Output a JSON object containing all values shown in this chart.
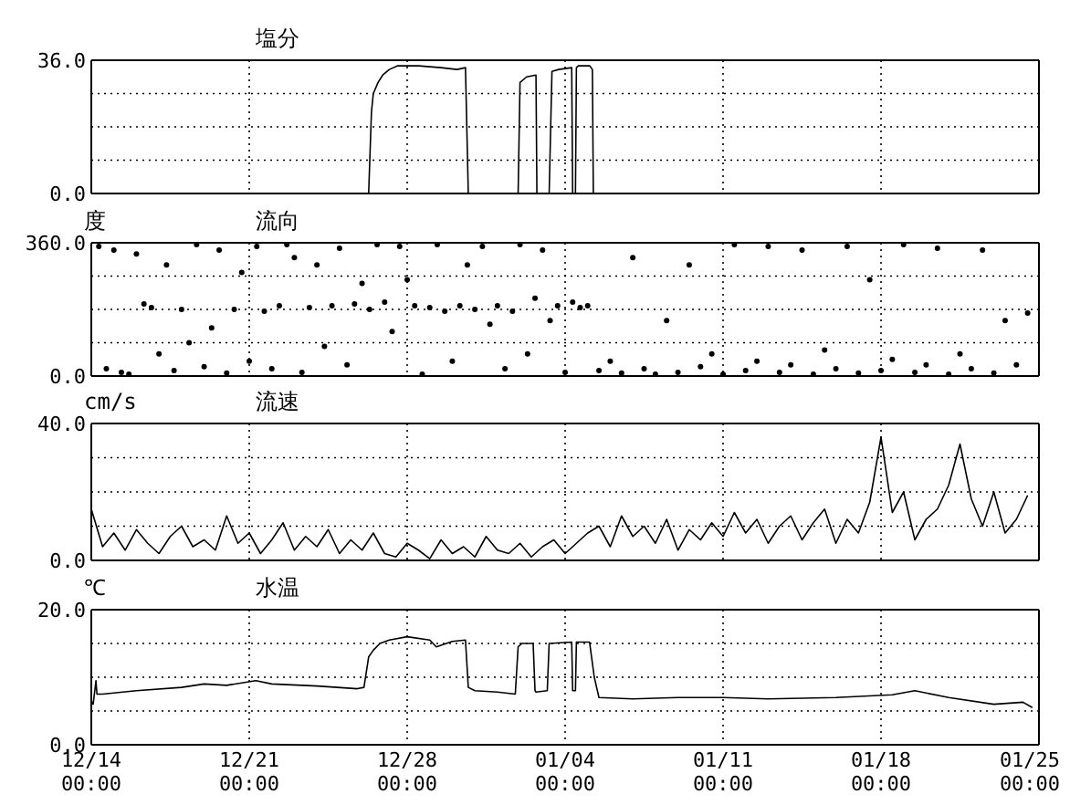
{
  "chart_data": [
    {
      "type": "line",
      "title": "塩分",
      "color": "#000000",
      "grid": true,
      "tick_labels": "y",
      "xlim": [
        "2000-12-14",
        "2001-01-25"
      ],
      "ylim": [
        0,
        36
      ],
      "xticks": [
        {
          "value": "2000-12-14",
          "label": null
        },
        {
          "value": "2000-12-21",
          "label": null
        },
        {
          "value": "2000-12-28",
          "label": null
        },
        {
          "value": "2001-01-04",
          "label": null
        },
        {
          "value": "2001-01-11",
          "label": null
        },
        {
          "value": "2001-01-18",
          "label": null
        },
        {
          "value": "2001-01-25",
          "label": null
        }
      ],
      "yticks": [
        {
          "value": 0,
          "label": "0.0"
        },
        {
          "value": 9,
          "label": null
        },
        {
          "value": 18,
          "label": null
        },
        {
          "value": 27,
          "label": null
        },
        {
          "value": 36,
          "label": "36.0"
        }
      ],
      "x": [
        "2000-12-14T00:00",
        "2000-12-26T07:00",
        "2000-12-26T10:00",
        "2000-12-26T12:00",
        "2000-12-26T17:00",
        "2000-12-26T22:00",
        "2000-12-27T05:00",
        "2000-12-27T14:00",
        "2000-12-28T12:00",
        "2000-12-29T12:00",
        "2000-12-30T05:00",
        "2000-12-30T14:00",
        "2000-12-30T17:00",
        "2001-01-01T22:00",
        "2001-01-02T00:00",
        "2001-01-02T07:00",
        "2001-01-02T17:00",
        "2001-01-02T18:00",
        "2001-01-03T07:00",
        "2001-01-03T10:00",
        "2001-01-03T17:00",
        "2001-01-04T07:00",
        "2001-01-04T08:00",
        "2001-01-04T11:00",
        "2001-01-04T12:00",
        "2001-01-04T14:00",
        "2001-01-05T02:00",
        "2001-01-05T05:00",
        "2001-01-05T06:00",
        "2001-01-25T00:00"
      ],
      "values": [
        0,
        0,
        22,
        27,
        30,
        32,
        33.5,
        34.5,
        34.5,
        34,
        33.5,
        34,
        0,
        0,
        30,
        31.5,
        32,
        0,
        0,
        33,
        33.5,
        34,
        0,
        0,
        34,
        34.5,
        34.5,
        33.5,
        0,
        0
      ]
    },
    {
      "type": "scatter",
      "title": "流向",
      "ylabel": "度",
      "color": "#000000",
      "marker": "circle",
      "grid": true,
      "tick_labels": "y",
      "xlim": [
        "2000-12-14",
        "2001-01-25"
      ],
      "ylim": [
        0,
        360
      ],
      "xticks": [
        {
          "value": "2000-12-14",
          "label": null
        },
        {
          "value": "2000-12-21",
          "label": null
        },
        {
          "value": "2000-12-28",
          "label": null
        },
        {
          "value": "2001-01-04",
          "label": null
        },
        {
          "value": "2001-01-11",
          "label": null
        },
        {
          "value": "2001-01-18",
          "label": null
        },
        {
          "value": "2001-01-25",
          "label": null
        }
      ],
      "yticks": [
        {
          "value": 0,
          "label": "0.0"
        },
        {
          "value": 90,
          "label": null
        },
        {
          "value": 180,
          "label": null
        },
        {
          "value": 270,
          "label": null
        },
        {
          "value": 360,
          "label": "360.0"
        }
      ],
      "x": [
        "2000-12-14T08:00",
        "2000-12-14T16:00",
        "2000-12-15T00:00",
        "2000-12-15T08:00",
        "2000-12-15T16:00",
        "2000-12-16T00:00",
        "2000-12-16T08:00",
        "2000-12-16T16:00",
        "2000-12-17T00:00",
        "2000-12-17T08:00",
        "2000-12-17T16:00",
        "2000-12-18T00:00",
        "2000-12-18T08:00",
        "2000-12-18T16:00",
        "2000-12-19T00:00",
        "2000-12-19T08:00",
        "2000-12-19T16:00",
        "2000-12-20T00:00",
        "2000-12-20T08:00",
        "2000-12-20T16:00",
        "2000-12-21T00:00",
        "2000-12-21T08:00",
        "2000-12-21T16:00",
        "2000-12-22T00:00",
        "2000-12-22T08:00",
        "2000-12-22T16:00",
        "2000-12-23T00:00",
        "2000-12-23T08:00",
        "2000-12-23T16:00",
        "2000-12-24T00:00",
        "2000-12-24T08:00",
        "2000-12-24T16:00",
        "2000-12-25T00:00",
        "2000-12-25T08:00",
        "2000-12-25T16:00",
        "2000-12-26T00:00",
        "2000-12-26T08:00",
        "2000-12-26T16:00",
        "2000-12-27T00:00",
        "2000-12-27T08:00",
        "2000-12-27T16:00",
        "2000-12-28T00:00",
        "2000-12-28T08:00",
        "2000-12-28T16:00",
        "2000-12-29T00:00",
        "2000-12-29T08:00",
        "2000-12-29T16:00",
        "2000-12-30T00:00",
        "2000-12-30T08:00",
        "2000-12-30T16:00",
        "2000-12-31T00:00",
        "2000-12-31T08:00",
        "2000-12-31T16:00",
        "2001-01-01T00:00",
        "2001-01-01T08:00",
        "2001-01-01T16:00",
        "2001-01-02T00:00",
        "2001-01-02T08:00",
        "2001-01-02T16:00",
        "2001-01-03T00:00",
        "2001-01-03T08:00",
        "2001-01-03T16:00",
        "2001-01-04T00:00",
        "2001-01-04T08:00",
        "2001-01-04T16:00",
        "2001-01-05T00:00",
        "2001-01-05T12:00",
        "2001-01-06T00:00",
        "2001-01-06T12:00",
        "2001-01-07T00:00",
        "2001-01-07T12:00",
        "2001-01-08T00:00",
        "2001-01-08T12:00",
        "2001-01-09T00:00",
        "2001-01-09T12:00",
        "2001-01-10T00:00",
        "2001-01-10T12:00",
        "2001-01-11T00:00",
        "2001-01-11T12:00",
        "2001-01-12T00:00",
        "2001-01-12T12:00",
        "2001-01-13T00:00",
        "2001-01-13T12:00",
        "2001-01-14T00:00",
        "2001-01-14T12:00",
        "2001-01-15T00:00",
        "2001-01-15T12:00",
        "2001-01-16T00:00",
        "2001-01-16T12:00",
        "2001-01-17T00:00",
        "2001-01-17T12:00",
        "2001-01-18T00:00",
        "2001-01-18T12:00",
        "2001-01-19T00:00",
        "2001-01-19T12:00",
        "2001-01-20T00:00",
        "2001-01-20T12:00",
        "2001-01-21T00:00",
        "2001-01-21T12:00",
        "2001-01-22T00:00",
        "2001-01-22T12:00",
        "2001-01-23T00:00",
        "2001-01-23T12:00",
        "2001-01-24T00:00",
        "2001-01-24T12:00"
      ],
      "values": [
        350,
        20,
        340,
        10,
        5,
        330,
        195,
        185,
        60,
        300,
        15,
        180,
        90,
        355,
        25,
        130,
        340,
        8,
        180,
        280,
        40,
        350,
        175,
        20,
        190,
        355,
        320,
        10,
        185,
        300,
        80,
        190,
        345,
        30,
        195,
        250,
        180,
        355,
        200,
        120,
        350,
        260,
        190,
        5,
        185,
        355,
        175,
        40,
        190,
        300,
        180,
        350,
        140,
        190,
        20,
        175,
        355,
        60,
        210,
        340,
        150,
        190,
        10,
        200,
        185,
        190,
        15,
        40,
        8,
        320,
        20,
        5,
        150,
        10,
        300,
        25,
        60,
        5,
        355,
        15,
        40,
        350,
        10,
        30,
        340,
        5,
        70,
        20,
        350,
        8,
        260,
        15,
        45,
        355,
        10,
        30,
        345,
        5,
        60,
        20,
        340,
        8,
        150,
        30,
        170
      ]
    },
    {
      "type": "line",
      "title": "流速",
      "ylabel": "cm/s",
      "color": "#000000",
      "grid": true,
      "tick_labels": "y",
      "xlim": [
        "2000-12-14",
        "2001-01-25"
      ],
      "ylim": [
        0,
        40
      ],
      "xticks": [
        {
          "value": "2000-12-14",
          "label": null
        },
        {
          "value": "2000-12-21",
          "label": null
        },
        {
          "value": "2000-12-28",
          "label": null
        },
        {
          "value": "2001-01-04",
          "label": null
        },
        {
          "value": "2001-01-11",
          "label": null
        },
        {
          "value": "2001-01-18",
          "label": null
        },
        {
          "value": "2001-01-25",
          "label": null
        }
      ],
      "yticks": [
        {
          "value": 0,
          "label": "0.0"
        },
        {
          "value": 10,
          "label": null
        },
        {
          "value": 20,
          "label": null
        },
        {
          "value": 30,
          "label": null
        },
        {
          "value": 40,
          "label": "40.0"
        }
      ],
      "x": [
        "2000-12-14T00:00",
        "2000-12-14T12:00",
        "2000-12-15T00:00",
        "2000-12-15T12:00",
        "2000-12-16T00:00",
        "2000-12-16T12:00",
        "2000-12-17T00:00",
        "2000-12-17T12:00",
        "2000-12-18T00:00",
        "2000-12-18T12:00",
        "2000-12-19T00:00",
        "2000-12-19T12:00",
        "2000-12-20T00:00",
        "2000-12-20T12:00",
        "2000-12-21T00:00",
        "2000-12-21T12:00",
        "2000-12-22T00:00",
        "2000-12-22T12:00",
        "2000-12-23T00:00",
        "2000-12-23T12:00",
        "2000-12-24T00:00",
        "2000-12-24T12:00",
        "2000-12-25T00:00",
        "2000-12-25T12:00",
        "2000-12-26T00:00",
        "2000-12-26T12:00",
        "2000-12-27T00:00",
        "2000-12-27T12:00",
        "2000-12-28T00:00",
        "2000-12-28T12:00",
        "2000-12-29T00:00",
        "2000-12-29T12:00",
        "2000-12-30T00:00",
        "2000-12-30T12:00",
        "2000-12-31T00:00",
        "2000-12-31T12:00",
        "2001-01-01T00:00",
        "2001-01-01T12:00",
        "2001-01-02T00:00",
        "2001-01-02T12:00",
        "2001-01-03T00:00",
        "2001-01-03T12:00",
        "2001-01-04T00:00",
        "2001-01-04T12:00",
        "2001-01-05T00:00",
        "2001-01-05T12:00",
        "2001-01-06T00:00",
        "2001-01-06T12:00",
        "2001-01-07T00:00",
        "2001-01-07T12:00",
        "2001-01-08T00:00",
        "2001-01-08T12:00",
        "2001-01-09T00:00",
        "2001-01-09T12:00",
        "2001-01-10T00:00",
        "2001-01-10T12:00",
        "2001-01-11T00:00",
        "2001-01-11T12:00",
        "2001-01-12T00:00",
        "2001-01-12T12:00",
        "2001-01-13T00:00",
        "2001-01-13T12:00",
        "2001-01-14T00:00",
        "2001-01-14T12:00",
        "2001-01-15T00:00",
        "2001-01-15T12:00",
        "2001-01-16T00:00",
        "2001-01-16T12:00",
        "2001-01-17T00:00",
        "2001-01-17T12:00",
        "2001-01-18T00:00",
        "2001-01-18T12:00",
        "2001-01-19T00:00",
        "2001-01-19T12:00",
        "2001-01-20T00:00",
        "2001-01-20T12:00",
        "2001-01-21T00:00",
        "2001-01-21T12:00",
        "2001-01-22T00:00",
        "2001-01-22T12:00",
        "2001-01-23T00:00",
        "2001-01-23T12:00",
        "2001-01-24T00:00",
        "2001-01-24T12:00"
      ],
      "values": [
        15,
        4,
        8,
        3,
        9,
        5,
        2,
        7,
        10,
        4,
        6,
        3,
        13,
        5,
        8,
        2,
        6,
        11,
        3,
        7,
        4,
        9,
        2,
        6,
        3,
        8,
        2,
        1,
        5,
        3,
        0.5,
        6,
        2,
        4,
        1,
        7,
        3,
        2,
        5,
        1,
        4,
        6,
        2,
        5,
        8,
        10,
        4,
        13,
        7,
        10,
        5,
        12,
        3,
        9,
        6,
        11,
        7,
        14,
        8,
        12,
        5,
        10,
        13,
        6,
        11,
        15,
        5,
        12,
        8,
        17,
        36,
        14,
        20,
        6,
        12,
        15,
        22,
        34,
        18,
        10,
        20,
        8,
        12,
        19
      ]
    },
    {
      "type": "line",
      "title": "水温",
      "ylabel": "℃",
      "color": "#000000",
      "grid": true,
      "xlim": [
        "2000-12-14",
        "2001-01-25"
      ],
      "ylim": [
        0,
        20
      ],
      "xticks": [
        {
          "value": "2000-12-14",
          "label": "12/14 00:00"
        },
        {
          "value": "2000-12-21",
          "label": "12/21 00:00"
        },
        {
          "value": "2000-12-28",
          "label": "12/28 00:00"
        },
        {
          "value": "2001-01-04",
          "label": "01/04 00:00"
        },
        {
          "value": "2001-01-11",
          "label": "01/11 00:00"
        },
        {
          "value": "2001-01-18",
          "label": "01/18 00:00"
        },
        {
          "value": "2001-01-25",
          "label": "01/25 00:00"
        }
      ],
      "yticks": [
        {
          "value": 0,
          "label": "0.0"
        },
        {
          "value": 5,
          "label": null
        },
        {
          "value": 10,
          "label": null
        },
        {
          "value": 15,
          "label": null
        },
        {
          "value": 20,
          "label": "20.0"
        }
      ],
      "x": [
        "2000-12-14T00:00",
        "2000-12-14T02:00",
        "2000-12-14T05:00",
        "2000-12-14T06:00",
        "2000-12-14T12:00",
        "2000-12-16T00:00",
        "2000-12-18T00:00",
        "2000-12-19T00:00",
        "2000-12-20T00:00",
        "2000-12-21T07:00",
        "2000-12-22T00:00",
        "2000-12-24T00:00",
        "2000-12-25T19:00",
        "2000-12-26T02:00",
        "2000-12-26T07:00",
        "2000-12-26T12:00",
        "2000-12-26T19:00",
        "2000-12-27T05:00",
        "2000-12-28T00:00",
        "2000-12-29T00:00",
        "2000-12-29T07:00",
        "2000-12-30T00:00",
        "2000-12-30T14:00",
        "2000-12-30T17:00",
        "2000-12-31T00:00",
        "2001-01-01T00:00",
        "2001-01-01T19:00",
        "2001-01-01T22:00",
        "2001-01-02T02:00",
        "2001-01-02T14:00",
        "2001-01-02T16:00",
        "2001-01-02T17:00",
        "2001-01-03T05:00",
        "2001-01-03T07:00",
        "2001-01-04T07:00",
        "2001-01-04T08:00",
        "2001-01-04T11:00",
        "2001-01-04T12:00",
        "2001-01-05T02:00",
        "2001-01-05T07:00",
        "2001-01-05T12:00",
        "2001-01-07T00:00",
        "2001-01-09T00:00",
        "2001-01-11T00:00",
        "2001-01-13T00:00",
        "2001-01-16T00:00",
        "2001-01-18T12:00",
        "2001-01-19T12:00",
        "2001-01-21T00:00",
        "2001-01-23T00:00",
        "2001-01-24T07:00",
        "2001-01-24T17:00"
      ],
      "values": [
        6.5,
        6,
        9.5,
        7.5,
        7.5,
        8,
        8.5,
        9,
        8.8,
        9.5,
        9,
        8.7,
        8.3,
        8.5,
        13,
        14,
        15,
        15.5,
        16,
        15.5,
        14.5,
        15.3,
        15.5,
        8.5,
        8,
        7.8,
        7.5,
        14.5,
        15,
        15,
        8,
        7.8,
        8,
        15,
        15.2,
        8,
        8,
        15.2,
        15.2,
        10,
        7,
        6.8,
        7,
        7,
        6.8,
        7,
        7.4,
        8,
        7,
        6,
        6.3,
        5.5
      ]
    }
  ]
}
